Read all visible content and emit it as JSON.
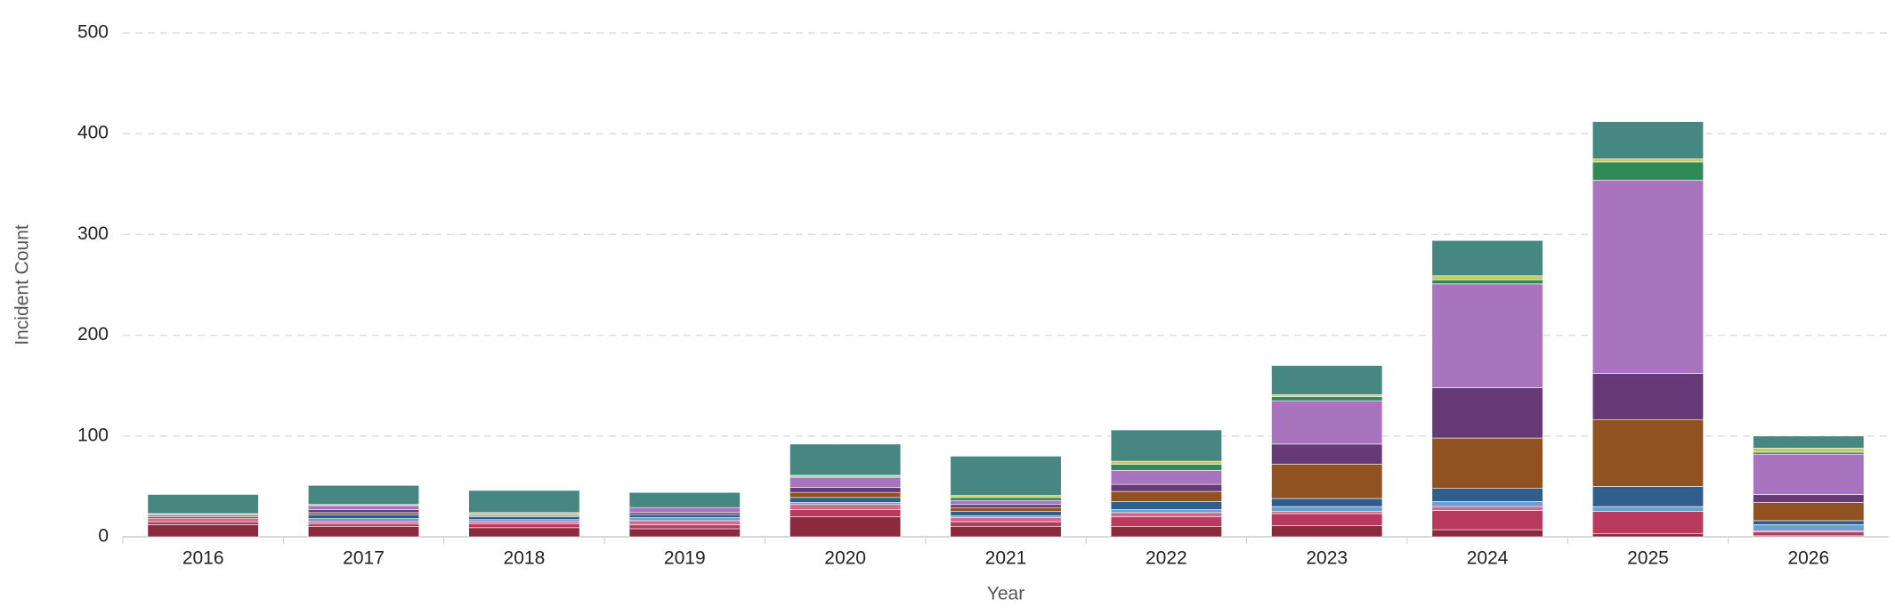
{
  "chart_data": {
    "type": "bar",
    "stacked": true,
    "x_label": "Year",
    "y_label": "Incident Count",
    "categories": [
      "2016",
      "2017",
      "2018",
      "2019",
      "2020",
      "2021",
      "2022",
      "2023",
      "2024",
      "2025",
      "2026"
    ],
    "series": [
      {
        "color": "#8b2a3f",
        "values": [
          12,
          10,
          9,
          8,
          20,
          10,
          10,
          11,
          7,
          3,
          1
        ]
      },
      {
        "color": "#b83b5e",
        "values": [
          3,
          3,
          4,
          4,
          7,
          5,
          10,
          12,
          19,
          22,
          4
        ]
      },
      {
        "color": "#d9668a",
        "values": [
          3,
          2,
          2,
          4,
          5,
          4,
          4,
          2,
          4,
          0,
          1
        ]
      },
      {
        "color": "#6a9fd0",
        "values": [
          0,
          3,
          2,
          3,
          2,
          2,
          3,
          5,
          5,
          5,
          6
        ]
      },
      {
        "color": "#2f5d8c",
        "values": [
          0,
          4,
          3,
          3,
          5,
          4,
          8,
          8,
          13,
          20,
          4
        ]
      },
      {
        "color": "#8f5220",
        "values": [
          2,
          2,
          0,
          0,
          5,
          4,
          10,
          34,
          50,
          66,
          18
        ]
      },
      {
        "color": "#663a77",
        "values": [
          0,
          3,
          1,
          2,
          5,
          3,
          7,
          20,
          50,
          46,
          8
        ]
      },
      {
        "color": "#a874bd",
        "values": [
          2,
          4,
          1,
          5,
          10,
          4,
          14,
          43,
          103,
          192,
          40
        ]
      },
      {
        "color": "#2e8b57",
        "values": [
          0,
          0,
          0,
          0,
          1,
          3,
          6,
          4,
          4,
          18,
          2
        ]
      },
      {
        "color": "#c8c85a",
        "values": [
          1,
          1,
          2,
          0,
          1,
          2,
          3,
          2,
          4,
          3,
          4
        ]
      },
      {
        "color": "#468782",
        "values": [
          19,
          19,
          22,
          15,
          31,
          39,
          31,
          29,
          35,
          37,
          12
        ]
      }
    ],
    "ylim": [
      0,
      500
    ],
    "yticks": [
      0,
      100,
      200,
      300,
      400,
      500
    ],
    "grid": true
  }
}
